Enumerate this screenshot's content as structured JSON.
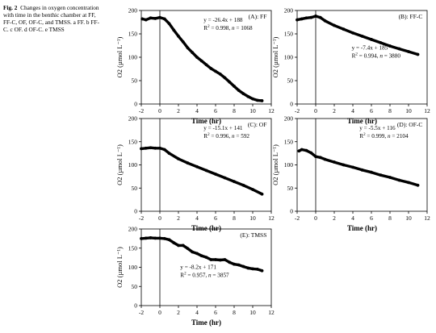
{
  "caption": {
    "label": "Fig. 2",
    "text": "Changes in oxygen concentration with time in the benthic chamber at FF, FF-C, OF, OF-C, and TMSS. a FF. b FF-C. c OF. d OF-C. e TMSS"
  },
  "chart_data": [
    {
      "type": "scatter",
      "panel_label": "(A): FF",
      "xlabel": "Time (hr)",
      "ylabel": "O2 (µmol L⁻¹)",
      "xlim": [
        -2,
        12
      ],
      "ylim": [
        0,
        200
      ],
      "xticks": [
        -2,
        0,
        2,
        4,
        6,
        8,
        10,
        12
      ],
      "yticks": [
        0,
        50,
        100,
        150,
        200
      ],
      "annotation": {
        "equation": "y = -26.4x + 188",
        "r2": "0.998",
        "n": "1068"
      },
      "series": [
        {
          "x": [
            -1.9,
            -1.5,
            -1.0,
            -0.5,
            0.0,
            0.5,
            1.0,
            1.5,
            2.0,
            2.5,
            3.0,
            3.5,
            4.0,
            4.5,
            5.0,
            5.5,
            6.0,
            6.5,
            7.0,
            7.5,
            8.0,
            8.5,
            9.0,
            9.5,
            10.0,
            10.5,
            11.0
          ],
          "y": [
            182,
            180,
            184,
            183,
            185,
            182,
            172,
            158,
            145,
            133,
            120,
            110,
            100,
            92,
            84,
            76,
            70,
            64,
            56,
            47,
            38,
            29,
            22,
            16,
            11,
            8,
            7
          ]
        }
      ]
    },
    {
      "type": "scatter",
      "panel_label": "(B): FF-C",
      "xlabel": "Time (hr)",
      "ylabel": "O2 (µmol L⁻¹)",
      "xlim": [
        -2,
        12
      ],
      "ylim": [
        0,
        200
      ],
      "xticks": [
        -2,
        0,
        2,
        4,
        6,
        8,
        10,
        12
      ],
      "yticks": [
        0,
        50,
        100,
        150,
        200
      ],
      "annotation": {
        "equation": "y = -7.4x + 185",
        "r2": "0.994",
        "n": "3880"
      },
      "series": [
        {
          "x": [
            -2.0,
            -1.5,
            -1.0,
            -0.5,
            0.0,
            0.5,
            1.0,
            2.0,
            3.0,
            4.0,
            5.0,
            6.0,
            7.0,
            8.0,
            9.0,
            10.0,
            11.0
          ],
          "y": [
            180,
            182,
            184,
            185,
            188,
            185,
            178,
            168,
            160,
            152,
            145,
            138,
            131,
            124,
            118,
            112,
            106
          ]
        }
      ]
    },
    {
      "type": "scatter",
      "panel_label": "(C): OF",
      "xlabel": "Time (hr)",
      "ylabel": "O2 (µmol L⁻¹)",
      "xlim": [
        -2,
        12
      ],
      "ylim": [
        0,
        200
      ],
      "xticks": [
        -2,
        0,
        2,
        4,
        6,
        8,
        10,
        12
      ],
      "yticks": [
        0,
        50,
        100,
        150,
        200
      ],
      "annotation": {
        "equation": "y = -15.1x + 141",
        "r2": "0.996",
        "n": "592"
      },
      "series": [
        {
          "x": [
            -2.0,
            -1.5,
            -1.0,
            -0.5,
            0.0,
            0.5,
            1.0,
            2.0,
            3.0,
            4.0,
            5.0,
            6.0,
            7.0,
            8.0,
            9.0,
            10.0,
            11.0
          ],
          "y": [
            135,
            136,
            137,
            136,
            136,
            133,
            125,
            113,
            104,
            96,
            88,
            80,
            72,
            64,
            56,
            47,
            37
          ]
        }
      ]
    },
    {
      "type": "scatter",
      "panel_label": "(D): OF-C",
      "xlabel": "Time (hr)",
      "ylabel": "O2 (µmol L⁻¹)",
      "xlim": [
        -2,
        12
      ],
      "ylim": [
        0,
        200
      ],
      "xticks": [
        -2,
        0,
        2,
        4,
        6,
        8,
        10,
        12
      ],
      "yticks": [
        0,
        50,
        100,
        150,
        200
      ],
      "annotation": {
        "equation": "y = -5.5x + 116",
        "r2": "0.999",
        "n": "2104"
      },
      "series": [
        {
          "x": [
            -1.8,
            -1.5,
            -1.0,
            -0.5,
            0.0,
            0.5,
            1.0,
            2.0,
            3.0,
            4.0,
            5.0,
            6.0,
            7.0,
            8.0,
            9.0,
            10.0,
            11.0
          ],
          "y": [
            130,
            133,
            131,
            126,
            118,
            116,
            112,
            106,
            100,
            95,
            89,
            84,
            78,
            73,
            67,
            62,
            56
          ]
        }
      ]
    },
    {
      "type": "scatter",
      "panel_label": "(E): TMSS",
      "xlabel": "Time (hr)",
      "ylabel": "O2 (µmol L⁻¹)",
      "xlim": [
        -2,
        12
      ],
      "ylim": [
        0,
        200
      ],
      "xticks": [
        -2,
        0,
        2,
        4,
        6,
        8,
        10,
        12
      ],
      "yticks": [
        0,
        50,
        100,
        150,
        200
      ],
      "annotation": {
        "equation": "y = -8.2x + 171",
        "r2": "0.957",
        "n": "3857"
      },
      "series": [
        {
          "x": [
            -2.0,
            -1.5,
            -1.0,
            -0.5,
            0.0,
            0.5,
            1.0,
            1.5,
            2.0,
            2.5,
            3.0,
            3.5,
            4.0,
            4.5,
            5.0,
            5.5,
            6.0,
            6.5,
            7.0,
            7.5,
            8.0,
            8.5,
            9.0,
            9.5,
            10.0,
            10.5,
            11.0
          ],
          "y": [
            175,
            176,
            177,
            176,
            176,
            175,
            172,
            164,
            157,
            157,
            149,
            140,
            136,
            130,
            126,
            120,
            120,
            119,
            120,
            113,
            108,
            106,
            102,
            98,
            96,
            95,
            91
          ]
        }
      ]
    }
  ]
}
